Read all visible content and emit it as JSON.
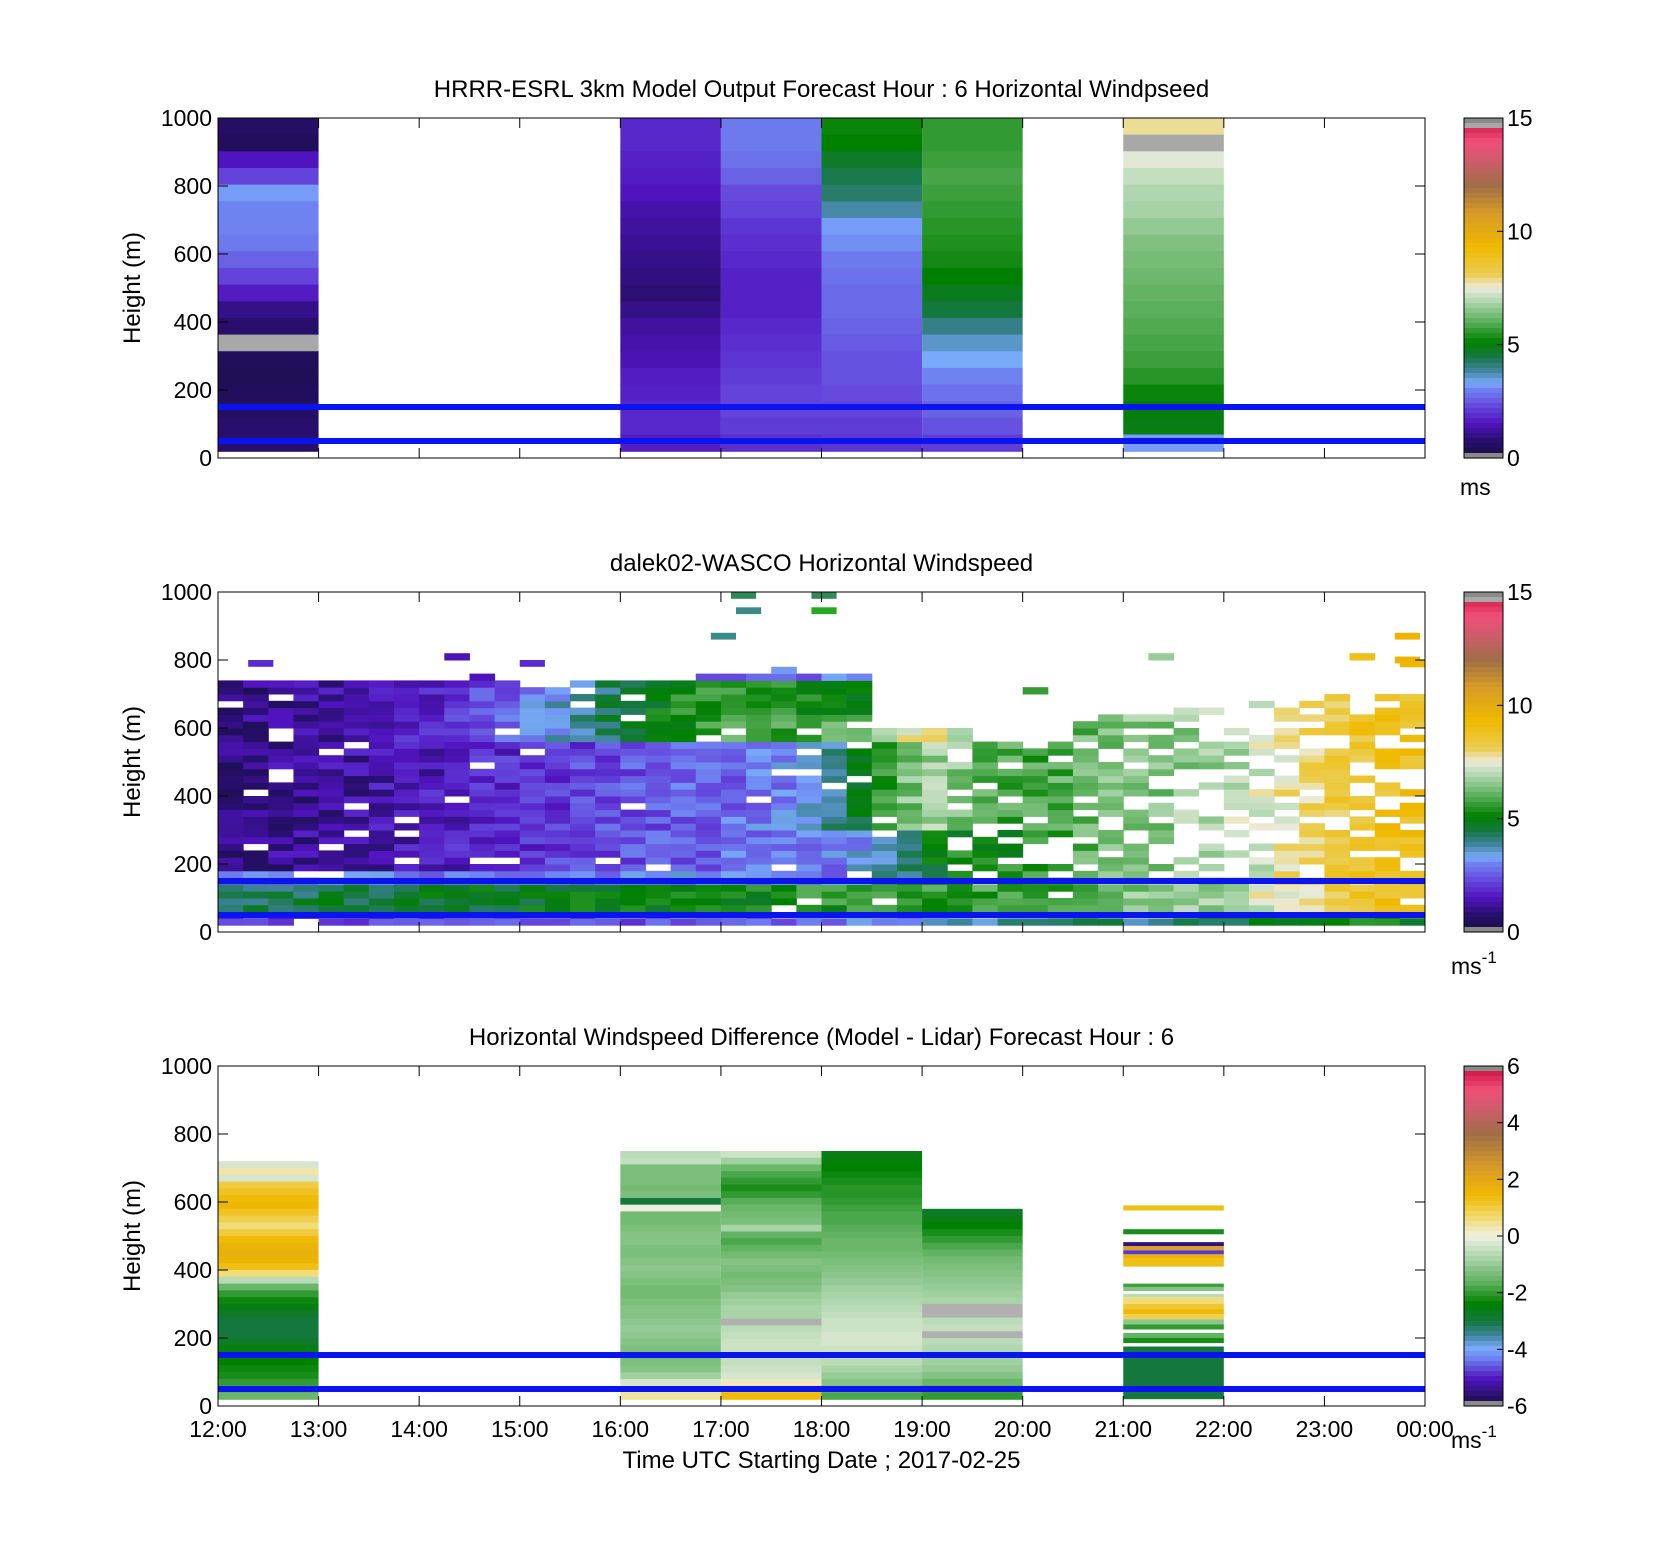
{
  "chart_data": [
    {
      "type": "heatmap",
      "title": "HRRR-ESRL 3km Model Output   Forecast Hour : 6 Horizontal Windpseed",
      "ylabel": "Height (m)",
      "ylim": [
        0,
        1000
      ],
      "yticks": [
        "0",
        "200",
        "400",
        "600",
        "800",
        "1000"
      ],
      "x_range_hours": [
        12,
        24
      ],
      "colorbar": {
        "ticks": [
          "0",
          "5",
          "10",
          "15"
        ],
        "range": [
          0,
          15
        ],
        "unit": "ms",
        "unit_sup": ""
      },
      "reference_lines_m": [
        50,
        150
      ],
      "columns": [
        {
          "t0": 12,
          "t1": 13,
          "top": 1000,
          "bottom": 20,
          "values": [
            0.6,
            0.5,
            1.5,
            2.2,
            3.2,
            3.0,
            3.0,
            2.9,
            2.6,
            2.2,
            1.6,
            1.0,
            0.7,
            14.8,
            0.5,
            0.4,
            0.5,
            0.6,
            0.7,
            0.7
          ]
        },
        {
          "t0": 16,
          "t1": 17,
          "top": 1000,
          "bottom": 20,
          "values": [
            1.8,
            1.8,
            1.7,
            1.6,
            1.5,
            1.3,
            1.2,
            1.1,
            1.0,
            0.9,
            0.8,
            1.0,
            1.2,
            1.3,
            1.4,
            1.6,
            1.7,
            1.8,
            1.8,
            1.6
          ]
        },
        {
          "t0": 17,
          "t1": 18,
          "top": 1000,
          "bottom": 20,
          "values": [
            2.9,
            2.9,
            2.8,
            2.6,
            2.3,
            2.2,
            2.0,
            1.9,
            1.8,
            1.7,
            1.7,
            1.7,
            1.8,
            1.9,
            2.0,
            2.1,
            2.2,
            2.2,
            2.1,
            1.9
          ]
        },
        {
          "t0": 18,
          "t1": 19,
          "top": 1000,
          "bottom": 20,
          "values": [
            5.2,
            5.1,
            4.7,
            4.4,
            4.2,
            3.8,
            3.2,
            3.1,
            2.9,
            2.8,
            2.7,
            2.7,
            2.6,
            2.5,
            2.4,
            2.4,
            2.3,
            2.2,
            2.1,
            2.0
          ]
        },
        {
          "t0": 19,
          "t1": 20,
          "top": 1000,
          "bottom": 20,
          "values": [
            5.6,
            5.6,
            5.7,
            5.8,
            5.7,
            5.6,
            5.5,
            5.4,
            5.3,
            5.1,
            4.8,
            4.5,
            4.0,
            3.6,
            3.3,
            3.0,
            2.8,
            2.6,
            2.4,
            2.1
          ]
        },
        {
          "t0": 21,
          "t1": 22,
          "top": 1000,
          "bottom": 20,
          "values": [
            7.8,
            14.9,
            7.4,
            7.1,
            6.9,
            6.8,
            6.6,
            6.4,
            6.3,
            6.2,
            6.1,
            6.0,
            5.9,
            5.8,
            5.7,
            5.5,
            5.2,
            5.0,
            4.9,
            3.2
          ]
        }
      ]
    },
    {
      "type": "heatmap",
      "title": "dalek02-WASCO  Horizontal Windspeed",
      "ylabel": "Height (m)",
      "ylim": [
        0,
        1000
      ],
      "yticks": [
        "0",
        "200",
        "400",
        "600",
        "800",
        "1000"
      ],
      "x_range_hours": [
        12,
        24
      ],
      "colorbar": {
        "ticks": [
          "0",
          "5",
          "10",
          "15"
        ],
        "range": [
          0,
          15
        ],
        "unit": "ms",
        "unit_sup": "-1"
      },
      "reference_lines_m": [
        50,
        150
      ],
      "profile_columns": 48,
      "profile_bin_m": 20
    },
    {
      "type": "heatmap",
      "title": "Horizontal Windspeed Difference (Model - Lidar) Forecast Hour : 6",
      "ylabel": "Height (m)",
      "xlabel": "Time UTC  Starting Date ; 2017-02-25",
      "ylim": [
        0,
        1000
      ],
      "yticks": [
        "0",
        "200",
        "400",
        "600",
        "800",
        "1000"
      ],
      "xticks": [
        "12:00",
        "13:00",
        "14:00",
        "15:00",
        "16:00",
        "17:00",
        "18:00",
        "19:00",
        "20:00",
        "21:00",
        "22:00",
        "23:00",
        "00:00"
      ],
      "x_range_hours": [
        12,
        24
      ],
      "colorbar": {
        "ticks": [
          "-6",
          "-4",
          "-2",
          "0",
          "2",
          "4",
          "6"
        ],
        "range": [
          -6,
          6
        ],
        "unit": "ms",
        "unit_sup": "-1"
      },
      "reference_lines_m": [
        50,
        150
      ],
      "columns": [
        {
          "t0": 12,
          "t1": 13,
          "top": 720,
          "bottom": 20,
          "values": [
            -0.3,
            0.3,
            -0.3,
            1.0,
            1.2,
            1.4,
            1.5,
            1.2,
            0.9,
            0.6,
            1.0,
            1.4,
            1.6,
            1.7,
            1.6,
            1.3,
            0.6,
            -0.6,
            -1.5,
            -2.0,
            -2.3,
            -2.6,
            -2.8,
            -3.0,
            -3.0,
            -3.0,
            -2.8,
            -2.6,
            -2.5,
            -2.4,
            -2.3,
            -2.2,
            -2.0,
            -1.8,
            -1.5
          ]
        },
        {
          "t0": 16,
          "t1": 17,
          "top": 750,
          "bottom": 20,
          "values": [
            -0.6,
            -0.5,
            -1.3,
            -1.3,
            -1.3,
            -1.4,
            -1.3,
            -3.0,
            0.0,
            -1.4,
            -1.4,
            -1.3,
            -1.2,
            -1.2,
            -1.3,
            -1.3,
            -1.2,
            -1.1,
            -1.2,
            -1.3,
            -1.4,
            -1.4,
            -1.3,
            -1.2,
            -1.2,
            -1.1,
            -1.0,
            -1.1,
            -1.2,
            -1.3,
            -1.4,
            -1.3,
            -1.2,
            -0.9,
            -0.3,
            0.3,
            0.4
          ]
        },
        {
          "t0": 17,
          "t1": 18,
          "top": 750,
          "bottom": 20,
          "values": [
            -0.4,
            -0.9,
            -1.5,
            -1.8,
            -2.0,
            -2.2,
            -2.0,
            -1.7,
            -1.5,
            -1.4,
            -1.3,
            -0.8,
            -1.6,
            -1.8,
            -1.6,
            -1.4,
            -1.2,
            -1.3,
            -1.4,
            -1.3,
            -1.2,
            -1.0,
            -0.9,
            -0.8,
            -0.8,
            15,
            -0.6,
            -0.5,
            -0.4,
            -0.4,
            -0.5,
            -0.5,
            -0.4,
            -0.3,
            0.2,
            1.0,
            1.4
          ]
        },
        {
          "t0": 18,
          "t1": 19,
          "top": 750,
          "bottom": 20,
          "values": [
            -2.6,
            -2.5,
            -2.4,
            -2.3,
            -2.2,
            -2.1,
            -2.1,
            -2.0,
            -1.9,
            -1.8,
            -1.8,
            -1.7,
            -1.6,
            -1.5,
            -1.5,
            -1.4,
            -1.3,
            -1.2,
            -1.1,
            -1.0,
            -0.9,
            -0.8,
            -0.7,
            -0.6,
            -0.5,
            -0.4,
            -0.4,
            -0.3,
            -0.3,
            -0.4,
            -0.5,
            -0.6,
            -0.8,
            -1.0,
            -1.2,
            -1.5,
            -1.8
          ]
        },
        {
          "t0": 19,
          "t1": 20,
          "top": 580,
          "bottom": 20,
          "values": [
            -2.8,
            -2.6,
            -2.4,
            -2.2,
            -2.0,
            -1.8,
            -1.6,
            -1.4,
            -1.3,
            -1.2,
            -1.1,
            -1.0,
            -0.9,
            -0.8,
            15,
            15,
            -0.6,
            -0.5,
            15,
            -0.6,
            -0.7,
            -0.8,
            -0.9,
            -1.0,
            -1.2,
            -1.5,
            -1.8,
            -2.0
          ]
        }
      ],
      "sparse_column": {
        "t0": 21,
        "t1": 22,
        "rows": [
          {
            "y0": 575,
            "y1": 590,
            "v": 1.3
          },
          {
            "y0": 505,
            "y1": 520,
            "v": -2.2
          },
          {
            "y0": 470,
            "y1": 482,
            "v": -5.5
          },
          {
            "y0": 458,
            "y1": 470,
            "v": 2.2
          },
          {
            "y0": 446,
            "y1": 458,
            "v": -4.8
          },
          {
            "y0": 434,
            "y1": 446,
            "v": 1.6
          },
          {
            "y0": 410,
            "y1": 434,
            "v": 1.3
          },
          {
            "y0": 350,
            "y1": 360,
            "v": -1.9
          },
          {
            "y0": 338,
            "y1": 350,
            "v": -1.2
          },
          {
            "y0": 320,
            "y1": 330,
            "v": -0.6
          },
          {
            "y0": 300,
            "y1": 320,
            "v": 0.6
          },
          {
            "y0": 285,
            "y1": 300,
            "v": 1.1
          },
          {
            "y0": 270,
            "y1": 285,
            "v": 1.5
          },
          {
            "y0": 255,
            "y1": 270,
            "v": 0.9
          },
          {
            "y0": 240,
            "y1": 255,
            "v": -1.1
          },
          {
            "y0": 225,
            "y1": 240,
            "v": -2.0
          },
          {
            "y0": 200,
            "y1": 215,
            "v": -1.6
          },
          {
            "y0": 185,
            "y1": 200,
            "v": -2.2
          },
          {
            "y0": 20,
            "y1": 175,
            "v": -3.0
          }
        ]
      }
    }
  ]
}
